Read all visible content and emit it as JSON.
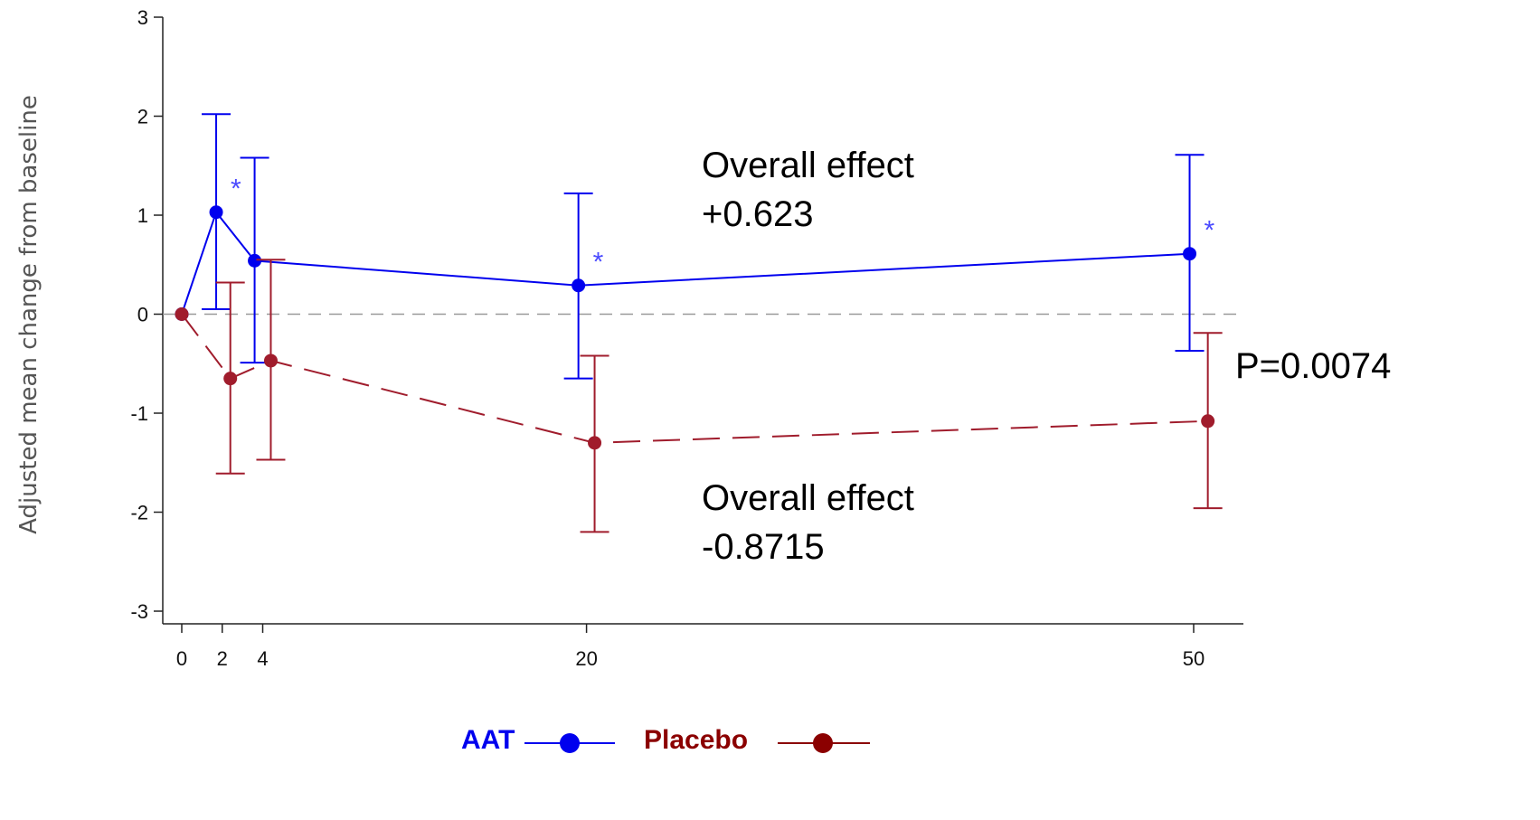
{
  "chart_data": {
    "type": "line",
    "title": "",
    "xlabel": "",
    "ylabel": "Adjusted mean change from baseline",
    "xlim": [
      -2,
      53
    ],
    "ylim": [
      -3,
      3
    ],
    "x_ticks": [
      0,
      2,
      4,
      20,
      50
    ],
    "x_tick_labels": [
      "0",
      "2",
      "4",
      "20",
      "50"
    ],
    "y_ticks": [
      3,
      2,
      1,
      0,
      -1,
      -2,
      -3
    ],
    "y_tick_labels": [
      "3",
      "2",
      "1",
      "0",
      "-1",
      "-2",
      "-3"
    ],
    "reference_line": 0,
    "series": [
      {
        "name": "AAT",
        "color": "#0000ee",
        "line_style": "solid",
        "x": [
          0,
          1.7,
          3.6,
          19.6,
          49.8
        ],
        "y": [
          0,
          1.03,
          0.54,
          0.29,
          0.61
        ],
        "err_low": [
          null,
          0.05,
          -0.49,
          -0.65,
          -0.37
        ],
        "err_high": [
          null,
          2.02,
          1.58,
          1.22,
          1.61
        ],
        "significant": [
          false,
          true,
          false,
          true,
          true
        ]
      },
      {
        "name": "Placebo",
        "color": "#a01c2c",
        "line_style": "dashed",
        "x": [
          0,
          2.4,
          4.4,
          20.4,
          50.7
        ],
        "y": [
          0,
          -0.65,
          -0.47,
          -1.3,
          -1.08
        ],
        "err_low": [
          null,
          -1.61,
          -1.47,
          -2.2,
          -1.96
        ],
        "err_high": [
          null,
          0.32,
          0.55,
          -0.42,
          -0.19
        ],
        "significant": [
          false,
          false,
          false,
          false,
          false
        ]
      }
    ],
    "significance_marker": "*",
    "annotations": {
      "aat_effect_line1": "Overall effect",
      "aat_effect_line2": "+0.623",
      "placebo_effect_line1": "Overall effect",
      "placebo_effect_line2": "-0.8715",
      "p_value": "P=0.0074"
    },
    "legend": {
      "placement": "bottom-center",
      "items": [
        {
          "label": "AAT",
          "color": "#0000ee"
        },
        {
          "label": "Placebo",
          "color": "#8b0000"
        }
      ]
    },
    "grid": false
  }
}
